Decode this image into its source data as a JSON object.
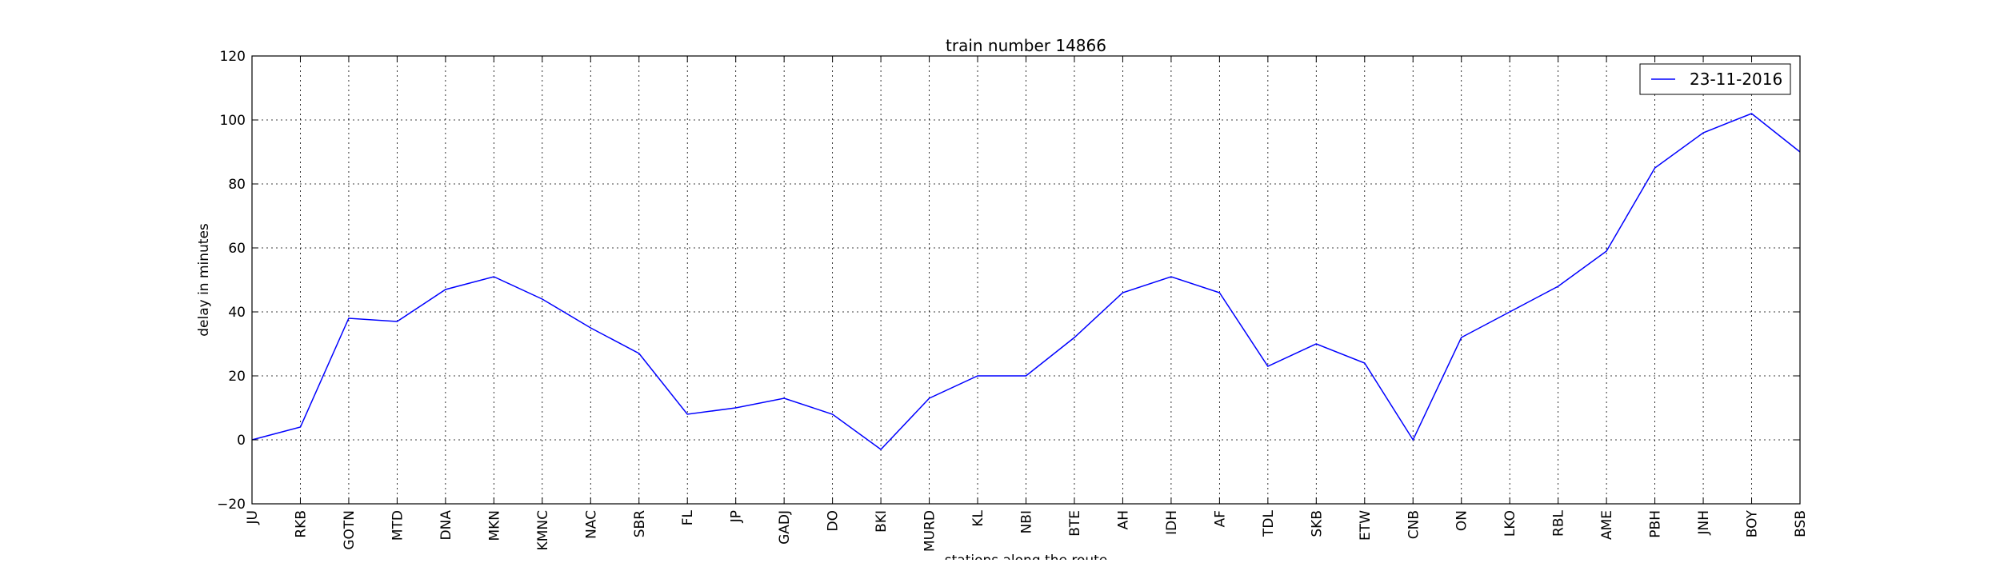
{
  "chart_data": {
    "type": "line",
    "title": "train number 14866",
    "xlabel": "stations along the route",
    "ylabel": "delay in minutes",
    "categories": [
      "JU",
      "RKB",
      "GOTN",
      "MTD",
      "DNA",
      "MKN",
      "KMNC",
      "NAC",
      "SBR",
      "FL",
      "JP",
      "GADJ",
      "DO",
      "BKI",
      "MURD",
      "KL",
      "NBI",
      "BTE",
      "AH",
      "IDH",
      "AF",
      "TDL",
      "SKB",
      "ETW",
      "CNB",
      "ON",
      "LKO",
      "RBL",
      "AME",
      "PBH",
      "JNH",
      "BOY",
      "BSB"
    ],
    "series": [
      {
        "name": "23-11-2016",
        "color": "#0000ff",
        "values": [
          0,
          4,
          38,
          37,
          47,
          51,
          44,
          35,
          27,
          8,
          10,
          13,
          8,
          -3,
          13,
          20,
          20,
          32,
          46,
          51,
          46,
          23,
          30,
          24,
          0,
          32,
          40,
          48,
          59,
          85,
          96,
          102,
          90
        ]
      }
    ],
    "ylim": [
      -20,
      120
    ],
    "yticks": [
      -20,
      0,
      20,
      40,
      60,
      80,
      100,
      120
    ],
    "grid": true,
    "legend_position": "top-right"
  }
}
